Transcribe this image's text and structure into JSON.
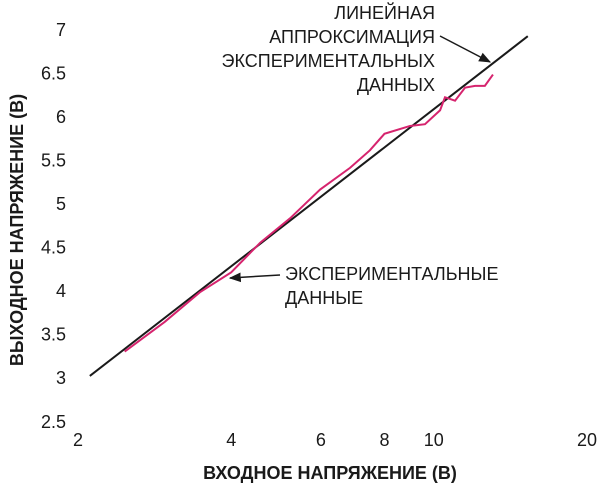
{
  "chart_data": {
    "type": "line",
    "xlabel": "ВХОДНОЕ НАПРЯЖЕНИЕ (В)",
    "ylabel": "ВЫХОДНОЕ НАПРЯЖЕНИЕ (В)",
    "xscale": "log",
    "xlim": [
      2,
      20
    ],
    "xticks": [
      2,
      4,
      6,
      8,
      10,
      20
    ],
    "ylim": [
      2.5,
      7
    ],
    "yticks": [
      2.5,
      3,
      3.5,
      4,
      4.5,
      5,
      5.5,
      6,
      6.5,
      7
    ],
    "series": [
      {
        "color": "#1a1a1a",
        "x": [
          2.11,
          15.3
        ],
        "values": [
          3.04,
          6.94
        ]
      },
      {
        "color": "#d6246e",
        "x": [
          2.47,
          2.96,
          3.47,
          4.0,
          4.56,
          5.22,
          5.98,
          6.85,
          7.49,
          8.0,
          8.98,
          9.61,
          10.29,
          10.52,
          11.01,
          11.52,
          12.05,
          12.6,
          13.07
        ],
        "values": [
          3.32,
          3.66,
          4.0,
          4.23,
          4.57,
          4.85,
          5.18,
          5.43,
          5.63,
          5.82,
          5.91,
          5.93,
          6.09,
          6.24,
          6.2,
          6.35,
          6.37,
          6.37,
          6.5
        ]
      }
    ],
    "annotations": [
      {
        "lines": [
          "ЛИНЕЙНАЯ",
          "АППРОКСИМАЦИЯ",
          "ЭКСПЕРИМЕНТАЛЬНЫХ",
          "ДАННЫХ"
        ]
      },
      {
        "lines": [
          "ЭКСПЕРИМЕНТАЛЬНЫЕ",
          "ДАННЫЕ"
        ]
      }
    ]
  }
}
